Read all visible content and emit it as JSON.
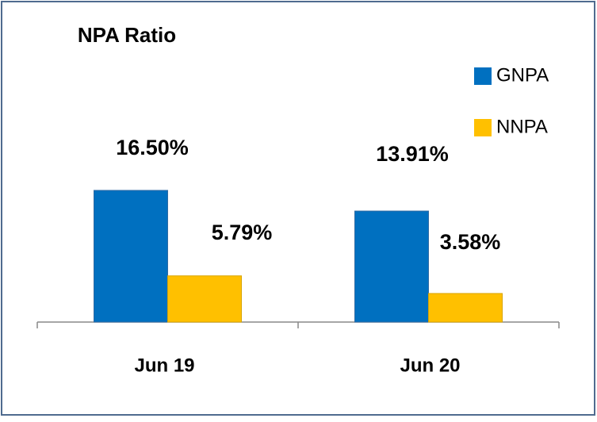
{
  "chart_data": {
    "type": "bar",
    "title": "NPA Ratio",
    "categories": [
      "Jun 19",
      "Jun 20"
    ],
    "series": [
      {
        "name": "GNPA",
        "color": "#0070c0",
        "values": [
          16.5,
          13.91
        ],
        "value_labels": [
          "16.50%",
          "13.91%"
        ]
      },
      {
        "name": "NNPA",
        "color": "#ffc000",
        "values": [
          5.79,
          3.58
        ],
        "value_labels": [
          "5.79%",
          "3.58%"
        ]
      }
    ],
    "legend": "right"
  }
}
